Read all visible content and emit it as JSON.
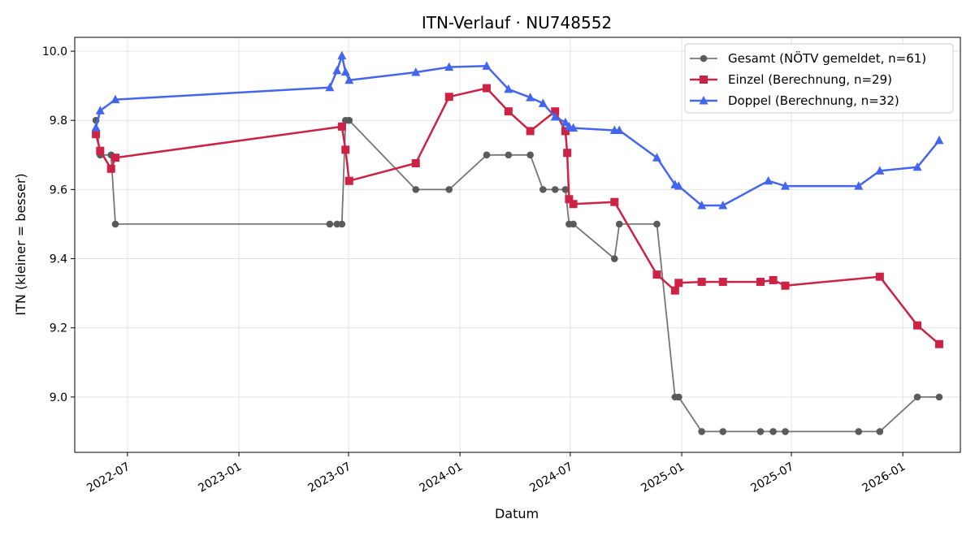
{
  "chart_data": {
    "type": "line",
    "title": "ITN-Verlauf · NU748552",
    "xlabel": "Datum",
    "ylabel": "ITN  (kleiner = besser)",
    "xlim": [
      "2022-04-05",
      "2026-04-06"
    ],
    "ylim": [
      8.84,
      10.04
    ],
    "x_ticks": [
      "2022-07",
      "2023-01",
      "2023-07",
      "2024-01",
      "2024-07",
      "2025-01",
      "2025-07",
      "2026-01"
    ],
    "y_ticks": [
      9.0,
      9.2,
      9.4,
      9.6,
      9.8,
      10.0
    ],
    "y_tick_labels": [
      "9.0",
      "9.2",
      "9.4",
      "9.6",
      "9.8",
      "10.0"
    ],
    "grid": true,
    "legend_position": "top-right",
    "series": [
      {
        "name": "Gesamt (NÖTV gemeldet, n=61)",
        "color": "#555555",
        "marker": "circle",
        "points": [
          {
            "x": "2022-05-10",
            "y": 9.8
          },
          {
            "x": "2022-05-17",
            "y": 9.7
          },
          {
            "x": "2022-06-04",
            "y": 9.7
          },
          {
            "x": "2022-06-11",
            "y": 9.5
          },
          {
            "x": "2023-05-31",
            "y": 9.5
          },
          {
            "x": "2023-06-12",
            "y": 9.5
          },
          {
            "x": "2023-06-20",
            "y": 9.5
          },
          {
            "x": "2023-06-26",
            "y": 9.8
          },
          {
            "x": "2023-07-02",
            "y": 9.8
          },
          {
            "x": "2023-10-20",
            "y": 9.6
          },
          {
            "x": "2023-12-14",
            "y": 9.6
          },
          {
            "x": "2024-02-14",
            "y": 9.7
          },
          {
            "x": "2024-03-21",
            "y": 9.7
          },
          {
            "x": "2024-04-26",
            "y": 9.7
          },
          {
            "x": "2024-05-17",
            "y": 9.6
          },
          {
            "x": "2024-06-06",
            "y": 9.6
          },
          {
            "x": "2024-06-23",
            "y": 9.6
          },
          {
            "x": "2024-06-29",
            "y": 9.5
          },
          {
            "x": "2024-07-06",
            "y": 9.5
          },
          {
            "x": "2024-09-12",
            "y": 9.4
          },
          {
            "x": "2024-09-20",
            "y": 9.5
          },
          {
            "x": "2024-11-21",
            "y": 9.5
          },
          {
            "x": "2024-12-21",
            "y": 9.0
          },
          {
            "x": "2024-12-27",
            "y": 9.0
          },
          {
            "x": "2025-02-03",
            "y": 8.9
          },
          {
            "x": "2025-03-10",
            "y": 8.9
          },
          {
            "x": "2025-05-11",
            "y": 8.9
          },
          {
            "x": "2025-06-01",
            "y": 8.9
          },
          {
            "x": "2025-06-21",
            "y": 8.9
          },
          {
            "x": "2025-10-20",
            "y": 8.9
          },
          {
            "x": "2025-11-24",
            "y": 8.9
          },
          {
            "x": "2026-01-25",
            "y": 9.0
          },
          {
            "x": "2026-03-02",
            "y": 9.0
          }
        ]
      },
      {
        "name": "Einzel (Berechnung, n=29)",
        "color": "#cc2244",
        "marker": "square",
        "points": [
          {
            "x": "2022-05-10",
            "y": 9.76
          },
          {
            "x": "2022-05-17",
            "y": 9.712
          },
          {
            "x": "2022-06-04",
            "y": 9.66
          },
          {
            "x": "2022-06-11",
            "y": 9.692
          },
          {
            "x": "2023-06-20",
            "y": 9.782
          },
          {
            "x": "2023-06-26",
            "y": 9.715
          },
          {
            "x": "2023-07-02",
            "y": 9.625
          },
          {
            "x": "2023-10-20",
            "y": 9.676
          },
          {
            "x": "2023-12-14",
            "y": 9.868
          },
          {
            "x": "2024-02-14",
            "y": 9.893
          },
          {
            "x": "2024-03-21",
            "y": 9.826
          },
          {
            "x": "2024-04-26",
            "y": 9.769
          },
          {
            "x": "2024-06-06",
            "y": 9.826
          },
          {
            "x": "2024-06-23",
            "y": 9.769
          },
          {
            "x": "2024-06-26",
            "y": 9.706
          },
          {
            "x": "2024-06-29",
            "y": 9.572
          },
          {
            "x": "2024-07-06",
            "y": 9.558
          },
          {
            "x": "2024-09-12",
            "y": 9.564
          },
          {
            "x": "2024-11-21",
            "y": 9.354
          },
          {
            "x": "2024-12-21",
            "y": 9.308
          },
          {
            "x": "2024-12-27",
            "y": 9.33
          },
          {
            "x": "2025-02-03",
            "y": 9.333
          },
          {
            "x": "2025-03-10",
            "y": 9.333
          },
          {
            "x": "2025-05-11",
            "y": 9.333
          },
          {
            "x": "2025-06-01",
            "y": 9.338
          },
          {
            "x": "2025-06-21",
            "y": 9.322
          },
          {
            "x": "2025-11-24",
            "y": 9.348
          },
          {
            "x": "2026-01-25",
            "y": 9.207
          },
          {
            "x": "2026-03-02",
            "y": 9.153
          }
        ]
      },
      {
        "name": "Doppel (Berechnung, n=32)",
        "color": "#4466ee",
        "marker": "triangle",
        "points": [
          {
            "x": "2022-05-10",
            "y": 9.779
          },
          {
            "x": "2022-05-17",
            "y": 9.828
          },
          {
            "x": "2022-06-11",
            "y": 9.86
          },
          {
            "x": "2023-05-31",
            "y": 9.895
          },
          {
            "x": "2023-06-12",
            "y": 9.944
          },
          {
            "x": "2023-06-20",
            "y": 9.987
          },
          {
            "x": "2023-06-26",
            "y": 9.94
          },
          {
            "x": "2023-07-02",
            "y": 9.916
          },
          {
            "x": "2023-10-20",
            "y": 9.939
          },
          {
            "x": "2023-12-14",
            "y": 9.954
          },
          {
            "x": "2024-02-14",
            "y": 9.957
          },
          {
            "x": "2024-03-21",
            "y": 9.89
          },
          {
            "x": "2024-04-26",
            "y": 9.866
          },
          {
            "x": "2024-05-17",
            "y": 9.849
          },
          {
            "x": "2024-06-06",
            "y": 9.81
          },
          {
            "x": "2024-06-23",
            "y": 9.794
          },
          {
            "x": "2024-06-29",
            "y": 9.782
          },
          {
            "x": "2024-07-06",
            "y": 9.778
          },
          {
            "x": "2024-09-12",
            "y": 9.771
          },
          {
            "x": "2024-09-20",
            "y": 9.771
          },
          {
            "x": "2024-11-21",
            "y": 9.692
          },
          {
            "x": "2024-12-21",
            "y": 9.614
          },
          {
            "x": "2024-12-27",
            "y": 9.61
          },
          {
            "x": "2025-02-03",
            "y": 9.554
          },
          {
            "x": "2025-03-10",
            "y": 9.554
          },
          {
            "x": "2025-05-24",
            "y": 9.625
          },
          {
            "x": "2025-06-21",
            "y": 9.61
          },
          {
            "x": "2025-10-20",
            "y": 9.61
          },
          {
            "x": "2025-11-24",
            "y": 9.654
          },
          {
            "x": "2026-01-25",
            "y": 9.665
          },
          {
            "x": "2026-03-02",
            "y": 9.742
          }
        ]
      }
    ]
  }
}
